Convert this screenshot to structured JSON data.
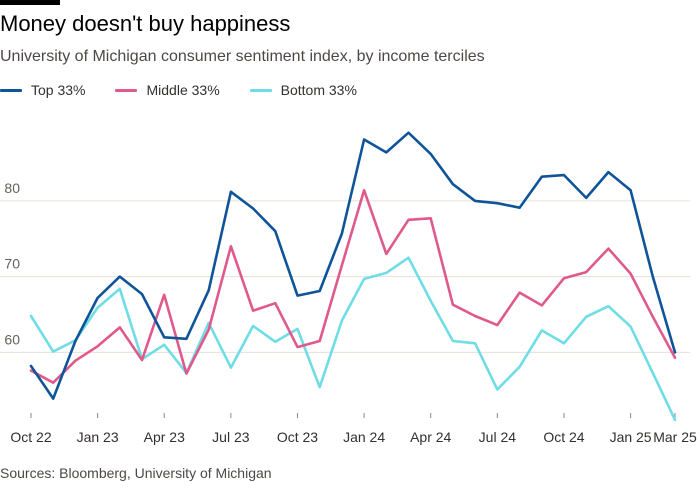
{
  "title": "Money doesn't buy happiness",
  "subtitle": "University of Michigan consumer sentiment index, by income terciles",
  "source": "Sources: Bloomberg, University of Michigan",
  "chart_data": {
    "type": "line",
    "x": [
      "Oct 22",
      "Nov 22",
      "Dec 22",
      "Jan 23",
      "Feb 23",
      "Mar 23",
      "Apr 23",
      "May 23",
      "Jun 23",
      "Jul 23",
      "Aug 23",
      "Sep 23",
      "Oct 23",
      "Nov 23",
      "Dec 23",
      "Jan 24",
      "Feb 24",
      "Mar 24",
      "Apr 24",
      "May 24",
      "Jun 24",
      "Jul 24",
      "Aug 24",
      "Sep 24",
      "Oct 24",
      "Nov 24",
      "Dec 24",
      "Jan 25",
      "Feb 25",
      "Mar 25"
    ],
    "x_tick_labels": [
      "Oct 22",
      "Jan 23",
      "Apr 23",
      "Jul 23",
      "Oct 23",
      "Jan 24",
      "Apr 24",
      "Jul 24",
      "Oct 24",
      "Jan 25",
      "Mar 25"
    ],
    "y_ticks": [
      60,
      70,
      80
    ],
    "ylim": [
      52,
      92
    ],
    "grid": true,
    "legend_position": "top-left",
    "series": [
      {
        "name": "Top 33%",
        "color": "#0f5499",
        "values": [
          58.2,
          53.9,
          61.5,
          67.2,
          70.0,
          67.7,
          62.0,
          61.8,
          68.2,
          81.2,
          79.0,
          76.0,
          67.5,
          68.1,
          75.7,
          88.1,
          86.4,
          89.0,
          86.2,
          82.2,
          80.0,
          79.7,
          79.1,
          83.2,
          83.4,
          80.4,
          83.8,
          81.4,
          70.0,
          60.0
        ]
      },
      {
        "name": "Middle 33%",
        "color": "#e0598b",
        "values": [
          57.6,
          56.0,
          58.9,
          60.8,
          63.3,
          59.0,
          67.6,
          57.2,
          63.0,
          74.0,
          65.5,
          66.5,
          60.7,
          61.5,
          71.5,
          81.4,
          73.0,
          77.5,
          77.7,
          66.3,
          64.8,
          63.6,
          67.9,
          66.2,
          69.8,
          70.6,
          73.7,
          70.4,
          64.7,
          59.3
        ]
      },
      {
        "name": "Bottom 33%",
        "color": "#6fdde5",
        "values": [
          64.8,
          60.1,
          61.6,
          65.9,
          68.4,
          59.1,
          61.0,
          57.3,
          63.9,
          58.0,
          63.5,
          61.4,
          63.1,
          55.4,
          64.2,
          69.7,
          70.5,
          72.5,
          66.8,
          61.5,
          61.2,
          55.1,
          58.1,
          62.9,
          61.2,
          64.7,
          66.1,
          63.4,
          57.3,
          51.1
        ]
      }
    ]
  }
}
